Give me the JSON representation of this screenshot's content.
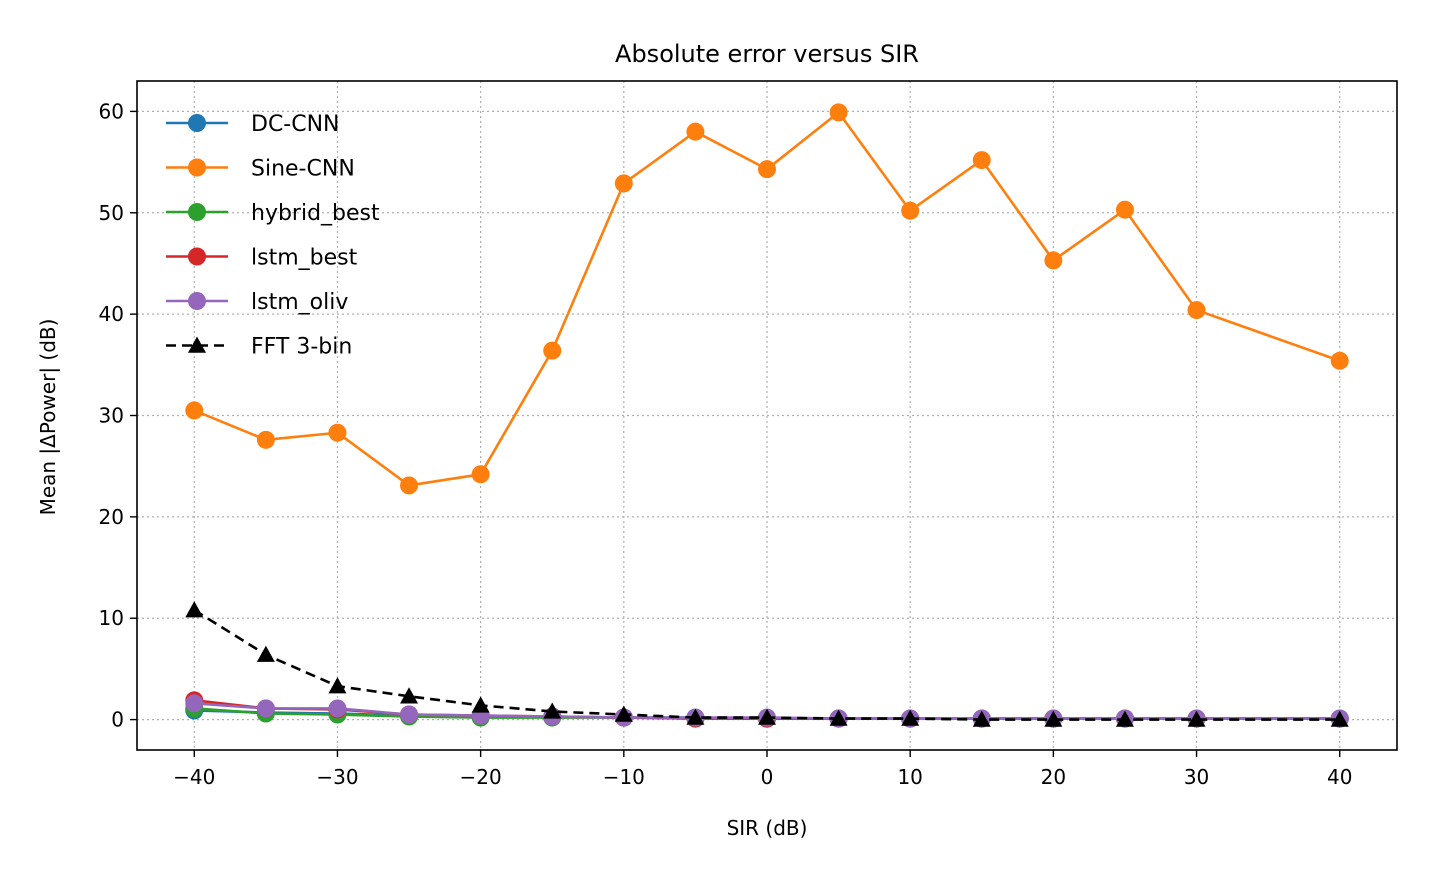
{
  "chart_data": {
    "type": "line",
    "title": "Absolute error versus SIR",
    "xlabel": "SIR (dB)",
    "ylabel": "Mean |ΔPower| (dB)",
    "x": [
      -40,
      -35,
      -30,
      -25,
      -20,
      -15,
      -10,
      -5,
      0,
      5,
      10,
      15,
      20,
      25,
      30,
      40
    ],
    "xlim": [
      -44,
      44
    ],
    "ylim": [
      -3,
      63
    ],
    "xticks": [
      -40,
      -30,
      -20,
      -10,
      0,
      10,
      20,
      30,
      40
    ],
    "xtick_labels": [
      "−40",
      "−30",
      "−20",
      "−10",
      "0",
      "10",
      "20",
      "30",
      "40"
    ],
    "yticks": [
      0,
      10,
      20,
      30,
      40,
      50,
      60
    ],
    "ytick_labels": [
      "0",
      "10",
      "20",
      "30",
      "40",
      "50",
      "60"
    ],
    "grid": true,
    "legend_position": "top-left",
    "series": [
      {
        "name": "DC-CNN",
        "color": "#1f77b4",
        "marker": "circle",
        "linestyle": "solid",
        "values": [
          0.9,
          0.7,
          0.6,
          0.4,
          0.3,
          0.3,
          0.2,
          0.2,
          0.1,
          0.1,
          0.1,
          0.1,
          0.1,
          0.1,
          0.1,
          0.1
        ]
      },
      {
        "name": "Sine-CNN",
        "color": "#ff7f0e",
        "marker": "circle",
        "linestyle": "solid",
        "values": [
          30.5,
          27.6,
          28.3,
          23.1,
          24.2,
          36.4,
          52.9,
          58.0,
          54.3,
          59.9,
          50.2,
          55.2,
          45.3,
          50.3,
          40.4,
          35.4
        ]
      },
      {
        "name": "hybrid_best",
        "color": "#2ca02c",
        "marker": "circle",
        "linestyle": "solid",
        "values": [
          1.1,
          0.6,
          0.5,
          0.3,
          0.2,
          0.2,
          0.2,
          0.1,
          0.1,
          0.1,
          0.1,
          0.1,
          0.1,
          0.1,
          0.1,
          0.1
        ]
      },
      {
        "name": "lstm_best",
        "color": "#d62728",
        "marker": "circle",
        "linestyle": "solid",
        "values": [
          1.9,
          1.1,
          1.0,
          0.5,
          0.4,
          0.3,
          0.2,
          0.1,
          0.1,
          0.1,
          0.1,
          0.1,
          0.1,
          0.1,
          0.1,
          0.1
        ]
      },
      {
        "name": "lstm_oliv",
        "color": "#9467bd",
        "marker": "circle",
        "linestyle": "solid",
        "values": [
          1.6,
          1.1,
          1.1,
          0.5,
          0.4,
          0.3,
          0.2,
          0.2,
          0.2,
          0.1,
          0.1,
          0.1,
          0.1,
          0.1,
          0.1,
          0.1
        ]
      },
      {
        "name": "FFT 3-bin",
        "color": "#000000",
        "marker": "triangle",
        "linestyle": "dashed",
        "values": [
          10.8,
          6.4,
          3.3,
          2.3,
          1.4,
          0.8,
          0.5,
          0.2,
          0.2,
          0.1,
          0.1,
          0.0,
          0.0,
          0.0,
          0.0,
          0.0
        ]
      }
    ]
  }
}
